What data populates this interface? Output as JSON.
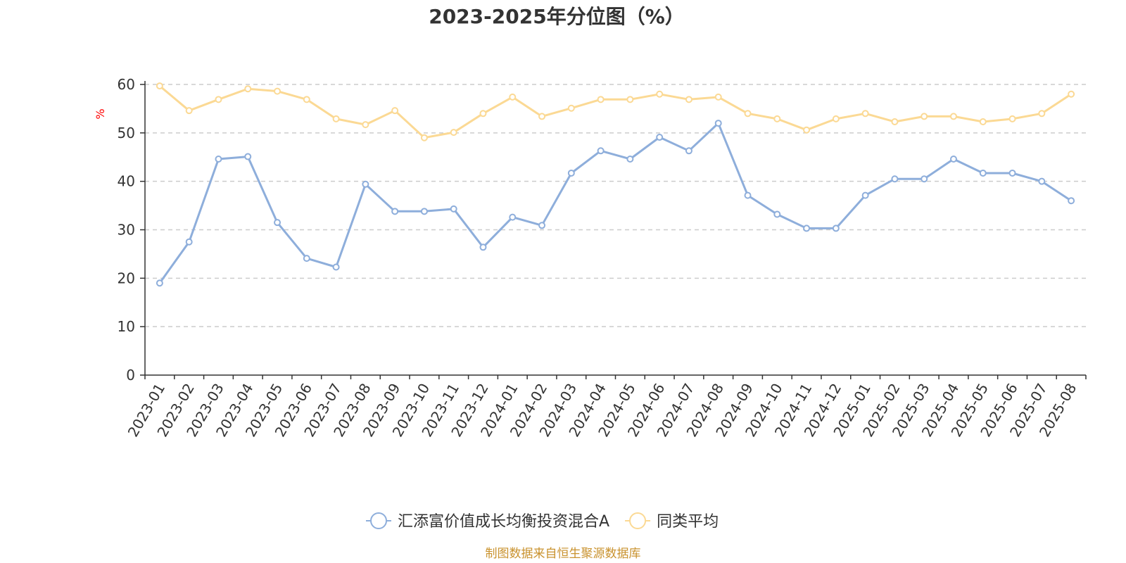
{
  "chart_data": {
    "type": "line",
    "title": "2023-2025年分位图（%）",
    "ylabel": "%",
    "ylim": [
      0,
      60
    ],
    "yticks": [
      0,
      10,
      20,
      30,
      40,
      50,
      60
    ],
    "grid": true,
    "legend_position": "bottom",
    "categories": [
      "2023-01",
      "2023-02",
      "2023-03",
      "2023-04",
      "2023-05",
      "2023-06",
      "2023-07",
      "2023-08",
      "2023-09",
      "2023-10",
      "2023-11",
      "2023-12",
      "2024-01",
      "2024-02",
      "2024-03",
      "2024-04",
      "2024-05",
      "2024-06",
      "2024-07",
      "2024-08",
      "2024-09",
      "2024-10",
      "2024-11",
      "2024-12",
      "2025-01",
      "2025-02",
      "2025-03",
      "2025-04",
      "2025-05",
      "2025-06",
      "2025-07",
      "2025-08"
    ],
    "series": [
      {
        "name": "汇添富价值成长均衡投资混合A",
        "color": "#8eaedb",
        "values": [
          19.0,
          27.5,
          44.6,
          45.1,
          31.5,
          24.1,
          22.3,
          39.4,
          33.8,
          33.8,
          34.3,
          26.4,
          32.6,
          30.9,
          41.7,
          46.3,
          44.6,
          49.1,
          46.3,
          52.0,
          37.1,
          33.2,
          30.3,
          30.3,
          37.1,
          40.5,
          40.5,
          44.6,
          41.7,
          41.7,
          40.0,
          36.0
        ]
      },
      {
        "name": "同类平均",
        "color": "#fbd994",
        "values": [
          59.7,
          54.6,
          56.9,
          59.1,
          58.6,
          56.9,
          52.9,
          51.7,
          54.6,
          49.0,
          50.1,
          54.0,
          57.4,
          53.4,
          55.1,
          56.9,
          56.9,
          58.0,
          56.9,
          57.4,
          54.0,
          52.9,
          50.6,
          52.9,
          54.0,
          52.3,
          53.4,
          53.4,
          52.3,
          52.9,
          54.0,
          58.0
        ]
      }
    ]
  },
  "footer": {
    "source": "制图数据来自恒生聚源数据库"
  }
}
